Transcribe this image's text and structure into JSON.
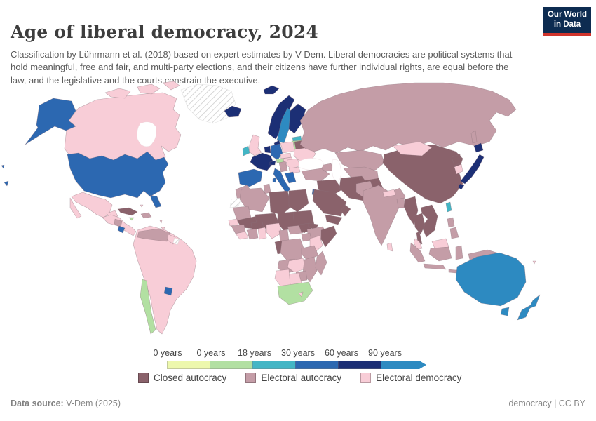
{
  "header": {
    "title": "Age of liberal democracy, 2024",
    "logo_line1": "Our World",
    "logo_line2": "in Data"
  },
  "subtitle": "Classification by Lührmann et al. (2018) based on expert estimates by V-Dem. Liberal democracies are political systems that hold meaningful, free and fair, and multi-party elections, and their citizens have further individual rights, are equal before the law, and the legislative and the courts constrain the executive.",
  "footer": {
    "source_label": "Data source:",
    "source_value": " V-Dem (2025)",
    "right_text": "democracy | CC BY"
  },
  "chart_data": {
    "type": "choropleth-map",
    "title": "Age of liberal democracy, 2024",
    "year": "2024",
    "colors": {
      "closed_autocracy": "#8a626b",
      "electoral_autocracy": "#c49da7",
      "electoral_democracy": "#f8cdd7",
      "age0": "#edf8ad",
      "age0_18": "#b2e0a2",
      "age18_30": "#43b6c5",
      "age30_60": "#2c68b1",
      "age60_90": "#1c2f75",
      "age90plus": "#2d8ac1",
      "no_data": "no_data"
    },
    "legend_scale": {
      "ticks": [
        "0 years",
        "0 years",
        "18 years",
        "30 years",
        "60 years",
        "90 years"
      ],
      "buckets": [
        "age0",
        "age0_18",
        "age18_30",
        "age30_60",
        "age60_90"
      ],
      "arrow": "age90plus"
    },
    "legend_categories": [
      {
        "label": "Closed autocracy",
        "key": "closed_autocracy"
      },
      {
        "label": "Electoral autocracy",
        "key": "electoral_autocracy"
      },
      {
        "label": "Electoral democracy",
        "key": "electoral_democracy"
      }
    ],
    "regions": {
      "canada": "electoral_democracy",
      "usa": "age30_60",
      "greenland": "no_data",
      "mexico": "electoral_democracy",
      "central_america": "electoral_democracy",
      "nicaragua": "electoral_autocracy",
      "costa_rica": "age30_60",
      "cuba": "closed_autocracy",
      "hispaniola": "electoral_autocracy",
      "jamaica": "age0_18",
      "bahamas": "electoral_democracy",
      "antilles": "electoral_democracy",
      "trinidad": "electoral_democracy",
      "south_america": "electoral_democracy",
      "venezuela": "electoral_autocracy",
      "guyana": "electoral_democracy",
      "suriname": "no_data",
      "chile": "age0_18",
      "uruguay": "age30_60",
      "iceland": "age60_90",
      "svalbard": "age60_90",
      "norway": "age60_90",
      "sweden": "age90plus",
      "finland": "age60_90",
      "denmark": "age60_90",
      "estonia": "age18_30",
      "latvia": "age0_18",
      "lithuania": "age0_18",
      "united_kingdom": "electoral_democracy",
      "ireland": "age18_30",
      "benelux": "age60_90",
      "germany": "age30_60",
      "france": "age60_90",
      "switzerland": "age60_90",
      "austria": "age0_18",
      "czechia_slovakia": "electoral_democracy",
      "poland": "electoral_democracy",
      "hungary": "electoral_democracy",
      "belarus": "closed_autocracy",
      "ukraine": "electoral_democracy",
      "romania": "electoral_democracy",
      "bulgaria": "electoral_democracy",
      "west_balkans": "electoral_autocracy",
      "greece": "age30_60",
      "iberia": "age30_60",
      "italy": "age30_60",
      "russia": "electoral_autocracy",
      "kazakhstan": "electoral_autocracy",
      "caucasus": "electoral_autocracy",
      "central_asia": "electoral_autocracy",
      "afghanistan": "closed_autocracy",
      "turkey": "electoral_autocracy",
      "iraq_syria": "closed_autocracy",
      "iran": "closed_autocracy",
      "saudi_arabia": "closed_autocracy",
      "yemen": "closed_autocracy",
      "oman": "closed_autocracy",
      "israel": "age30_60",
      "morocco": "electoral_autocracy",
      "western_sahara": "no_data",
      "algeria": "electoral_autocracy",
      "tunisia": "electoral_autocracy",
      "libya": "closed_autocracy",
      "egypt": "closed_autocracy",
      "mauritania": "electoral_autocracy",
      "mali": "closed_autocracy",
      "niger": "closed_autocracy",
      "chad": "closed_autocracy",
      "sudan": "closed_autocracy",
      "south_sudan": "closed_autocracy",
      "eritrea": "closed_autocracy",
      "ethiopia": "electoral_autocracy",
      "somalia": "closed_autocracy",
      "senegal": "electoral_democracy",
      "guinea": "electoral_autocracy",
      "sierra_leone_liberia": "electoral_democracy",
      "ivory_coast": "electoral_autocracy",
      "burkina_faso": "closed_autocracy",
      "ghana": "electoral_democracy",
      "nigeria": "electoral_democracy",
      "cameroon": "electoral_autocracy",
      "central_african_republic": "electoral_autocracy",
      "gabon_congo": "closed_autocracy",
      "drc": "electoral_autocracy",
      "uganda": "electoral_autocracy",
      "kenya": "electoral_democracy",
      "tanzania": "electoral_autocracy",
      "angola": "electoral_autocracy",
      "zambia": "electoral_democracy",
      "mozambique": "electoral_autocracy",
      "zimbabwe": "electoral_autocracy",
      "botswana": "electoral_democracy",
      "namibia": "electoral_democracy",
      "south_africa": "age0_18",
      "lesotho": "electoral_democracy",
      "madagascar": "electoral_autocracy",
      "china": "closed_autocracy",
      "mongolia": "electoral_democracy",
      "north_korea": "closed_autocracy",
      "south_korea": "electoral_democracy",
      "japan": "age60_90",
      "taiwan": "age18_30",
      "india": "electoral_autocracy",
      "pakistan": "electoral_autocracy",
      "nepal": "electoral_democracy",
      "bangladesh": "electoral_autocracy",
      "sri_lanka": "electoral_democracy",
      "myanmar": "closed_autocracy",
      "thailand": "closed_autocracy",
      "indochina": "closed_autocracy",
      "malaysia": "electoral_democracy",
      "indonesia": "electoral_autocracy",
      "philippines": "electoral_autocracy",
      "new_guinea": "electoral_autocracy",
      "solomon": "electoral_autocracy",
      "fiji": "electoral_democracy",
      "australia": "age90plus",
      "new_zealand": "age90plus",
      "hawaii": "age30_60"
    }
  }
}
